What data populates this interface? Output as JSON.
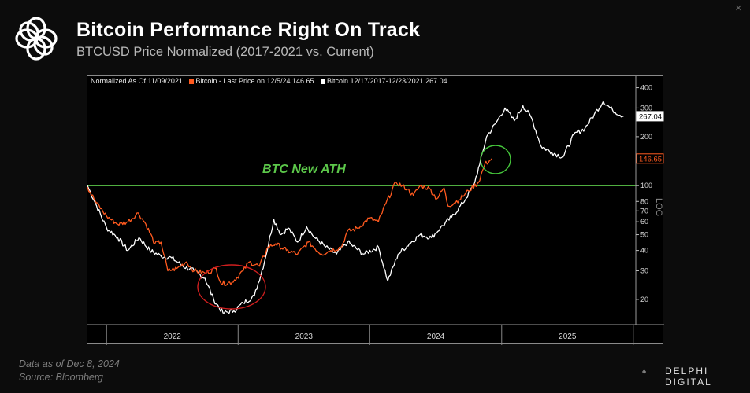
{
  "header": {
    "title": "Bitcoin Performance Right On Track",
    "subtitle": "BTCUSD Price Normalized (2017-2021 vs. Current)"
  },
  "legend": {
    "normalized": "Normalized As Of 11/09/2021",
    "series_current": "Bitcoin - Last Price on 12/5/24 146.65",
    "series_past": "Bitcoin 12/17/2017-12/23/2021 267.04"
  },
  "annotation": {
    "ath_label": "BTC New ATH"
  },
  "footer": {
    "data_note": "Data as of Dec 8, 2024",
    "source": "Source: Bloomberg",
    "brand": "DELPHI DIGITAL"
  },
  "colors": {
    "current_series": "#ff5a1f",
    "past_series": "#ffffff",
    "ath_line": "#5cc84a",
    "circle_low": "#d01f1f",
    "circle_high": "#46c83c"
  },
  "chart_data": {
    "type": "line",
    "y_scale": "log",
    "ylabel": "LOG",
    "y_ticks": [
      20,
      30,
      40,
      50,
      60,
      70,
      80,
      100,
      200,
      300,
      400
    ],
    "x_ticks": [
      "2022",
      "2023",
      "2024",
      "2025"
    ],
    "reference_line": {
      "y": 100,
      "label": "BTC New ATH"
    },
    "last_value_labels": [
      {
        "series": "Bitcoin 12/17/2017-12/23/2021",
        "value": 267.04
      },
      {
        "series": "Bitcoin - Last Price on 12/5/24",
        "value": 146.65
      }
    ],
    "series": [
      {
        "name": "Bitcoin - Last Price on 12/5/24",
        "color": "#ff5a1f",
        "points": [
          {
            "x": "2021-11-09",
            "y": 98
          },
          {
            "x": "2021-12-01",
            "y": 80
          },
          {
            "x": "2022-01-01",
            "y": 65
          },
          {
            "x": "2022-02-01",
            "y": 58
          },
          {
            "x": "2022-03-01",
            "y": 60
          },
          {
            "x": "2022-03-30",
            "y": 68
          },
          {
            "x": "2022-04-20",
            "y": 58
          },
          {
            "x": "2022-05-15",
            "y": 44
          },
          {
            "x": "2022-06-01",
            "y": 45
          },
          {
            "x": "2022-06-20",
            "y": 30
          },
          {
            "x": "2022-07-15",
            "y": 31
          },
          {
            "x": "2022-08-10",
            "y": 34
          },
          {
            "x": "2022-09-01",
            "y": 30
          },
          {
            "x": "2022-10-01",
            "y": 29
          },
          {
            "x": "2022-11-01",
            "y": 31
          },
          {
            "x": "2022-11-15",
            "y": 25
          },
          {
            "x": "2022-12-15",
            "y": 25.5
          },
          {
            "x": "2023-01-15",
            "y": 30
          },
          {
            "x": "2023-02-01",
            "y": 34
          },
          {
            "x": "2023-03-01",
            "y": 32
          },
          {
            "x": "2023-03-25",
            "y": 42
          },
          {
            "x": "2023-04-15",
            "y": 44
          },
          {
            "x": "2023-05-15",
            "y": 40
          },
          {
            "x": "2023-06-15",
            "y": 38
          },
          {
            "x": "2023-07-15",
            "y": 45
          },
          {
            "x": "2023-08-20",
            "y": 38
          },
          {
            "x": "2023-09-15",
            "y": 40
          },
          {
            "x": "2023-10-15",
            "y": 42
          },
          {
            "x": "2023-10-30",
            "y": 52
          },
          {
            "x": "2023-11-30",
            "y": 55
          },
          {
            "x": "2023-12-30",
            "y": 63
          },
          {
            "x": "2024-01-25",
            "y": 60
          },
          {
            "x": "2024-02-15",
            "y": 78
          },
          {
            "x": "2024-03-14",
            "y": 105
          },
          {
            "x": "2024-04-15",
            "y": 95
          },
          {
            "x": "2024-05-01",
            "y": 87
          },
          {
            "x": "2024-05-20",
            "y": 100
          },
          {
            "x": "2024-06-15",
            "y": 96
          },
          {
            "x": "2024-07-05",
            "y": 83
          },
          {
            "x": "2024-07-25",
            "y": 97
          },
          {
            "x": "2024-08-05",
            "y": 75
          },
          {
            "x": "2024-09-05",
            "y": 82
          },
          {
            "x": "2024-10-01",
            "y": 93
          },
          {
            "x": "2024-10-29",
            "y": 105
          },
          {
            "x": "2024-11-15",
            "y": 135
          },
          {
            "x": "2024-12-05",
            "y": 146.65
          }
        ]
      },
      {
        "name": "Bitcoin 12/17/2017-12/23/2021",
        "color": "#ffffff",
        "points": [
          {
            "x": "2021-11-09",
            "y": 100
          },
          {
            "x": "2021-12-01",
            "y": 78
          },
          {
            "x": "2022-01-01",
            "y": 55
          },
          {
            "x": "2022-02-01",
            "y": 48
          },
          {
            "x": "2022-03-01",
            "y": 40
          },
          {
            "x": "2022-04-01",
            "y": 48
          },
          {
            "x": "2022-05-01",
            "y": 40
          },
          {
            "x": "2022-06-01",
            "y": 37
          },
          {
            "x": "2022-07-01",
            "y": 36
          },
          {
            "x": "2022-08-01",
            "y": 32
          },
          {
            "x": "2022-09-01",
            "y": 30
          },
          {
            "x": "2022-10-01",
            "y": 27
          },
          {
            "x": "2022-10-25",
            "y": 20
          },
          {
            "x": "2022-11-20",
            "y": 16.5
          },
          {
            "x": "2022-12-20",
            "y": 17
          },
          {
            "x": "2023-01-15",
            "y": 19
          },
          {
            "x": "2023-02-15",
            "y": 21
          },
          {
            "x": "2023-03-15",
            "y": 34
          },
          {
            "x": "2023-04-10",
            "y": 62
          },
          {
            "x": "2023-04-30",
            "y": 50
          },
          {
            "x": "2023-05-20",
            "y": 55
          },
          {
            "x": "2023-06-15",
            "y": 45
          },
          {
            "x": "2023-07-10",
            "y": 56
          },
          {
            "x": "2023-08-01",
            "y": 48
          },
          {
            "x": "2023-09-01",
            "y": 42
          },
          {
            "x": "2023-10-01",
            "y": 38
          },
          {
            "x": "2023-11-01",
            "y": 45
          },
          {
            "x": "2023-12-15",
            "y": 38
          },
          {
            "x": "2024-01-25",
            "y": 42
          },
          {
            "x": "2024-02-20",
            "y": 26
          },
          {
            "x": "2024-03-20",
            "y": 38
          },
          {
            "x": "2024-04-20",
            "y": 44
          },
          {
            "x": "2024-05-20",
            "y": 50
          },
          {
            "x": "2024-06-20",
            "y": 48
          },
          {
            "x": "2024-07-15",
            "y": 55
          },
          {
            "x": "2024-08-15",
            "y": 64
          },
          {
            "x": "2024-09-15",
            "y": 78
          },
          {
            "x": "2024-10-15",
            "y": 100
          },
          {
            "x": "2024-11-01",
            "y": 135
          },
          {
            "x": "2024-11-20",
            "y": 200
          },
          {
            "x": "2024-12-15",
            "y": 240
          },
          {
            "x": "2025-01-10",
            "y": 300
          },
          {
            "x": "2025-02-05",
            "y": 250
          },
          {
            "x": "2025-03-01",
            "y": 310
          },
          {
            "x": "2025-03-25",
            "y": 260
          },
          {
            "x": "2025-04-20",
            "y": 175
          },
          {
            "x": "2025-05-20",
            "y": 160
          },
          {
            "x": "2025-06-20",
            "y": 150
          },
          {
            "x": "2025-07-20",
            "y": 205
          },
          {
            "x": "2025-08-20",
            "y": 225
          },
          {
            "x": "2025-09-15",
            "y": 275
          },
          {
            "x": "2025-10-10",
            "y": 330
          },
          {
            "x": "2025-11-05",
            "y": 290
          },
          {
            "x": "2025-12-05",
            "y": 267.04
          }
        ]
      }
    ]
  }
}
